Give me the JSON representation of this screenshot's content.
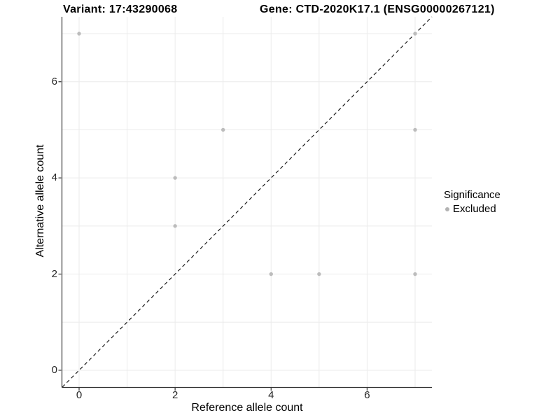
{
  "titles": {
    "variant": "Variant: 17:43290068",
    "gene": "Gene: CTD-2020K17.1 (ENSG00000267121)"
  },
  "chart_data": {
    "type": "scatter",
    "title_left": "Variant: 17:43290068",
    "title_right": "Gene: CTD-2020K17.1 (ENSG00000267121)",
    "xlabel": "Reference allele count",
    "ylabel": "Alternative allele count",
    "xlim": [
      -0.35,
      7.35
    ],
    "ylim": [
      -0.35,
      7.35
    ],
    "x_ticks": [
      0,
      2,
      4,
      6
    ],
    "y_ticks": [
      0,
      2,
      4,
      6
    ],
    "grid_positions": [
      0,
      1,
      2,
      3,
      4,
      5,
      6,
      7
    ],
    "grid": true,
    "series": [
      {
        "name": "Excluded",
        "points": [
          [
            0,
            7
          ],
          [
            2,
            3
          ],
          [
            2,
            4
          ],
          [
            3,
            5
          ],
          [
            4,
            2
          ],
          [
            5,
            2
          ],
          [
            7,
            2
          ],
          [
            7,
            5
          ],
          [
            7,
            7
          ]
        ],
        "color": "#bcbcbc"
      }
    ],
    "diagonal": {
      "from": [
        -0.35,
        -0.35
      ],
      "to": [
        7.35,
        7.35
      ],
      "style": "dashed",
      "color": "#1a1a1a"
    },
    "legend": {
      "position": "right",
      "title": "Significance",
      "items": [
        {
          "label": "Excluded",
          "color": "#b3b3b3"
        }
      ]
    },
    "colors": {
      "point": "#bcbcbc",
      "grid": "#ebebeb",
      "axis": "#333333",
      "tick": "#333333",
      "background": "#ffffff"
    }
  }
}
